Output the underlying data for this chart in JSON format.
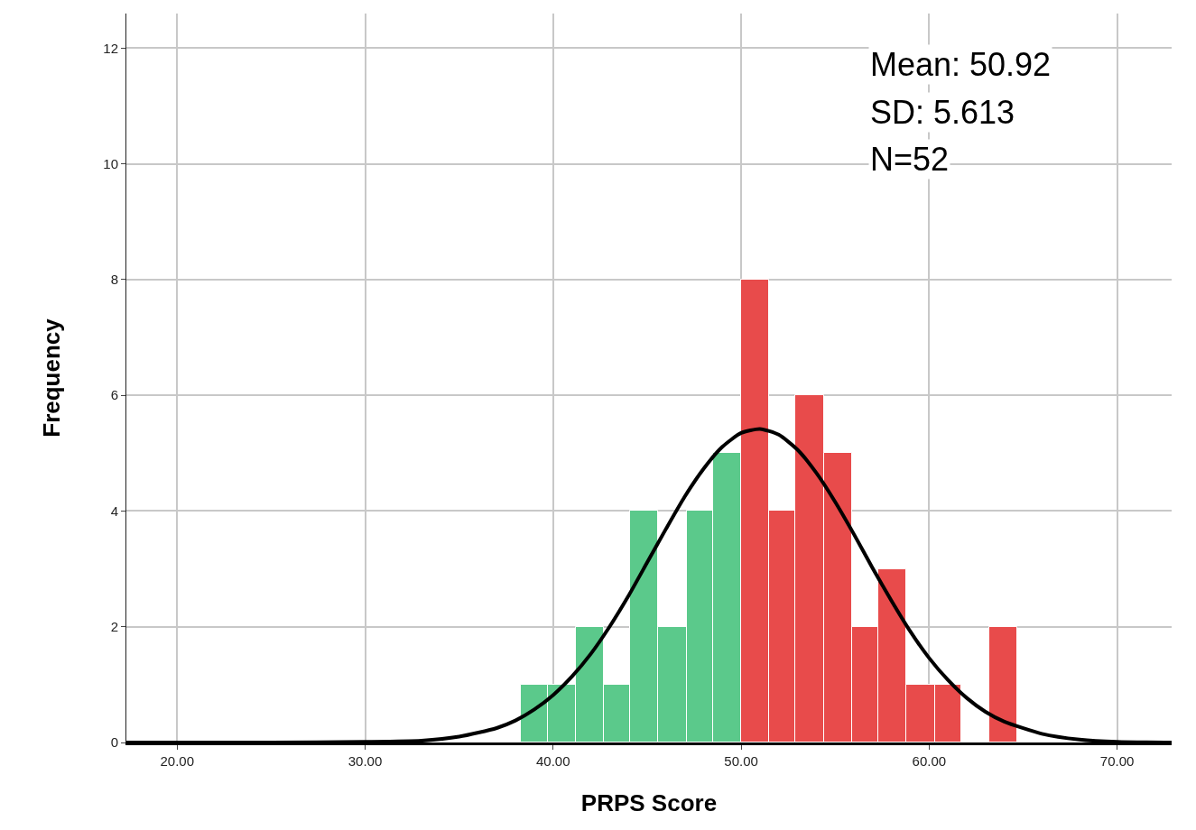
{
  "chart_data": {
    "type": "histogram",
    "bins": [
      38.3,
      39.7,
      41.2,
      42.7,
      44.1,
      45.6,
      47.1,
      48.5,
      50.0,
      51.5,
      52.9,
      54.4,
      55.9,
      57.3,
      58.8,
      60.3,
      61.7,
      63.2,
      64.7
    ],
    "values": [
      1,
      1,
      2,
      1,
      4,
      2,
      4,
      5,
      8,
      4,
      6,
      5,
      2,
      3,
      1,
      1,
      0,
      2
    ],
    "colors": [
      "#5bc98b",
      "#5bc98b",
      "#5bc98b",
      "#5bc98b",
      "#5bc98b",
      "#5bc98b",
      "#5bc98b",
      "#5bc98b",
      "#e84b4b",
      "#e84b4b",
      "#e84b4b",
      "#e84b4b",
      "#e84b4b",
      "#e84b4b",
      "#e84b4b",
      "#e84b4b",
      "#e84b4b",
      "#e84b4b"
    ],
    "series": [
      {
        "type": "line",
        "color": "#000000",
        "x": [
          17.3,
          25,
          30,
          33,
          35,
          37,
          38,
          39,
          40,
          41,
          42,
          43,
          44,
          45,
          46,
          47,
          48,
          49,
          50,
          51,
          52,
          53,
          54,
          55,
          56,
          57,
          58,
          59,
          60,
          61,
          62,
          63,
          64,
          66,
          68,
          70,
          72.9
        ],
        "values": [
          0,
          0,
          0.01,
          0.03,
          0.1,
          0.25,
          0.38,
          0.57,
          0.82,
          1.14,
          1.53,
          2.0,
          2.53,
          3.11,
          3.69,
          4.25,
          4.73,
          5.11,
          5.35,
          5.42,
          5.32,
          5.06,
          4.66,
          4.16,
          3.6,
          3.01,
          2.45,
          1.92,
          1.46,
          1.08,
          0.77,
          0.53,
          0.36,
          0.15,
          0.05,
          0.01,
          0
        ]
      }
    ],
    "xlabel": "PRPS Score",
    "ylabel": "Frequency",
    "annotations": [
      "Mean: 50.92",
      "SD: 5.613",
      "N=52"
    ],
    "xlim": [
      17.3,
      72.9
    ],
    "ylim": [
      0,
      12.6
    ],
    "xticks": [
      {
        "value": 20,
        "label": "20.00"
      },
      {
        "value": 30,
        "label": "30.00"
      },
      {
        "value": 40,
        "label": "40.00"
      },
      {
        "value": 50,
        "label": "50.00"
      },
      {
        "value": 60,
        "label": "60.00"
      },
      {
        "value": 70,
        "label": "70.00"
      }
    ],
    "yticks": [
      0,
      2,
      4,
      6,
      8,
      10,
      12
    ],
    "grid": true
  }
}
